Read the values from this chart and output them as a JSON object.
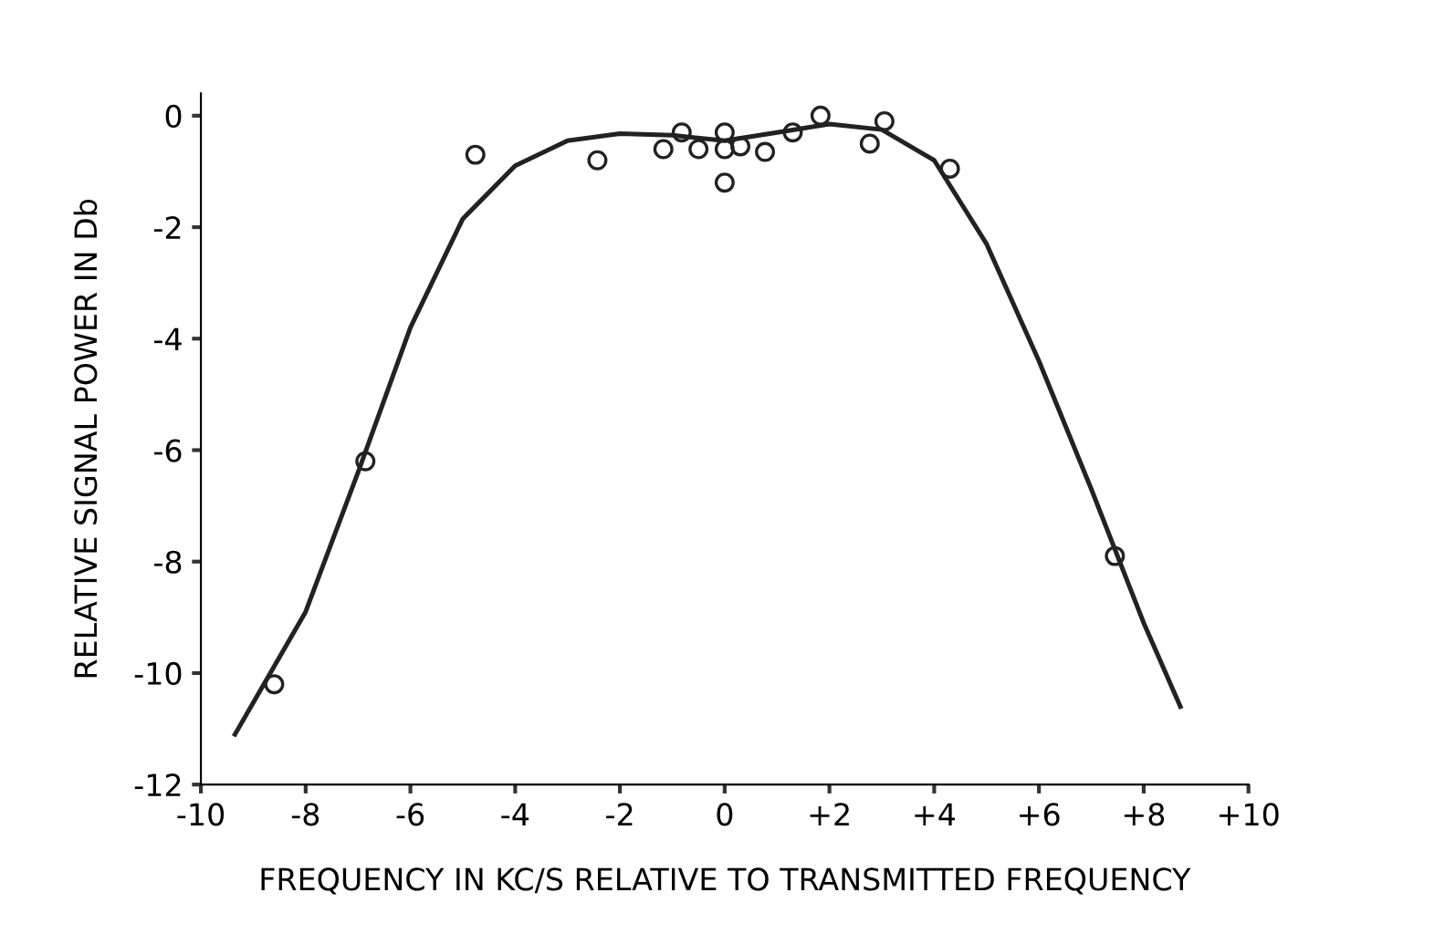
{
  "chart_data": {
    "type": "scatter",
    "xlabel": "FREQUENCY IN KC/S RELATIVE TO TRANSMITTED FREQUENCY",
    "ylabel": "RELATIVE SIGNAL POWER IN Db",
    "xlim": [
      -10,
      10
    ],
    "ylim": [
      -12,
      0.4
    ],
    "xticks": [
      -10,
      -8,
      -6,
      -4,
      -2,
      0,
      {
        "value": 2,
        "label": "+2"
      },
      {
        "value": 4,
        "label": "+4"
      },
      {
        "value": 6,
        "label": "+6"
      },
      {
        "value": 8,
        "label": "+8"
      },
      {
        "value": 10,
        "label": "+10"
      }
    ],
    "yticks": [
      -12,
      -10,
      -8,
      -6,
      -4,
      -2,
      0
    ],
    "grid": false,
    "legend": false,
    "series": [
      {
        "color": "#222222",
        "marker": "circle",
        "x": [
          -8.6,
          -6.86,
          -4.76,
          -2.43,
          -1.17,
          -0.82,
          -0.5,
          0,
          0,
          0,
          0.3,
          0.77,
          1.3,
          1.83,
          2.77,
          3.05,
          4.3,
          7.45
        ],
        "values": [
          -10.2,
          -6.2,
          -0.7,
          -0.8,
          -0.6,
          -0.3,
          -0.6,
          -0.3,
          -0.6,
          -1.2,
          -0.55,
          -0.65,
          -0.3,
          0.0,
          -0.5,
          -0.1,
          -0.95,
          -7.9
        ]
      },
      {
        "type": "line",
        "color": "#222222",
        "line_style": "solid",
        "marker": "none",
        "x": [
          -9.35,
          -8,
          -7,
          -6,
          -5,
          -4,
          -3,
          -2,
          -1,
          0,
          1,
          2,
          3,
          4,
          5,
          6,
          7,
          8,
          8.7
        ],
        "values": [
          -11.1,
          -8.9,
          -6.4,
          -3.8,
          -1.85,
          -0.9,
          -0.45,
          -0.32,
          -0.35,
          -0.45,
          -0.3,
          -0.15,
          -0.25,
          -0.8,
          -2.3,
          -4.4,
          -6.7,
          -9.1,
          -10.6
        ]
      }
    ]
  }
}
